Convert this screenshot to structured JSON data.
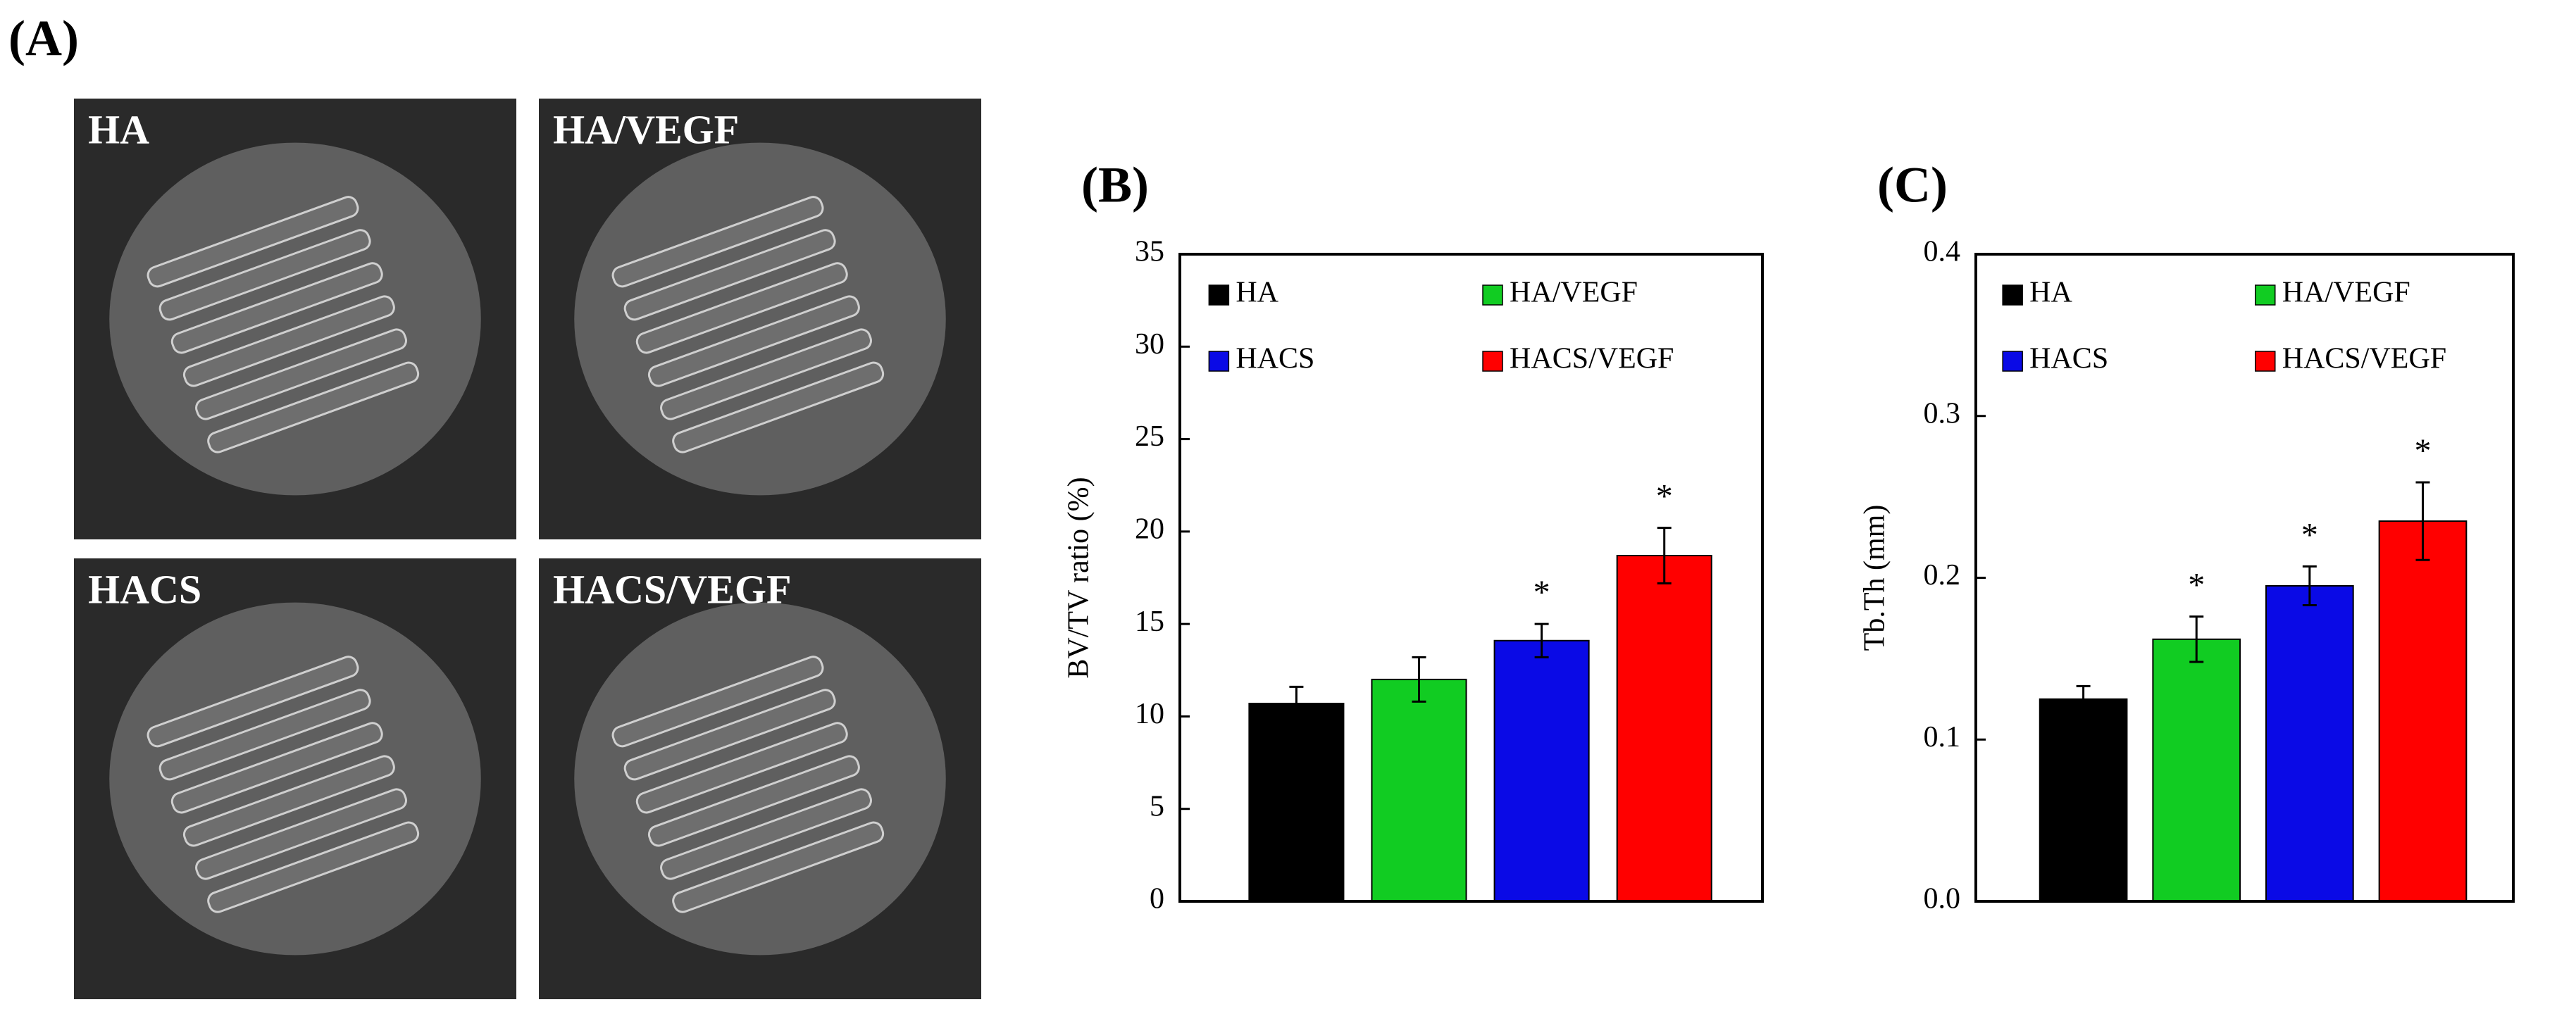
{
  "images": {
    "label": "(A)",
    "items": [
      "HA",
      "HA/VEGF",
      "HACS",
      "HACS/VEGF"
    ]
  },
  "chart_data": [
    {
      "type": "bar",
      "title": "(B)",
      "ylabel": "BV/TV ratio (%)",
      "categories": [
        "HA",
        "HA/VEGF",
        "HACS",
        "HACS/VEGF"
      ],
      "values": [
        10.7,
        12.0,
        14.1,
        18.7
      ],
      "errors": [
        0.9,
        1.2,
        0.9,
        1.5
      ],
      "significance": [
        null,
        null,
        "*",
        "*"
      ],
      "colors": [
        "#000000",
        "#11cc22",
        "#0a0ae6",
        "#ff0000"
      ],
      "ylim": [
        0,
        35
      ],
      "yticks": [
        0,
        5,
        10,
        15,
        20,
        25,
        30,
        35
      ]
    },
    {
      "type": "bar",
      "title": "(C)",
      "ylabel": "Tb.Th (mm)",
      "categories": [
        "HA",
        "HA/VEGF",
        "HACS",
        "HACS/VEGF"
      ],
      "values": [
        0.125,
        0.162,
        0.195,
        0.235
      ],
      "errors": [
        0.008,
        0.014,
        0.012,
        0.024
      ],
      "significance": [
        null,
        "*",
        "*",
        "*"
      ],
      "colors": [
        "#000000",
        "#11cc22",
        "#0a0ae6",
        "#ff0000"
      ],
      "ylim": [
        0,
        0.4
      ],
      "yticks": [
        {
          "value": 0,
          "label": "0.0"
        },
        0.1,
        0.2,
        0.3,
        0.4
      ]
    }
  ]
}
